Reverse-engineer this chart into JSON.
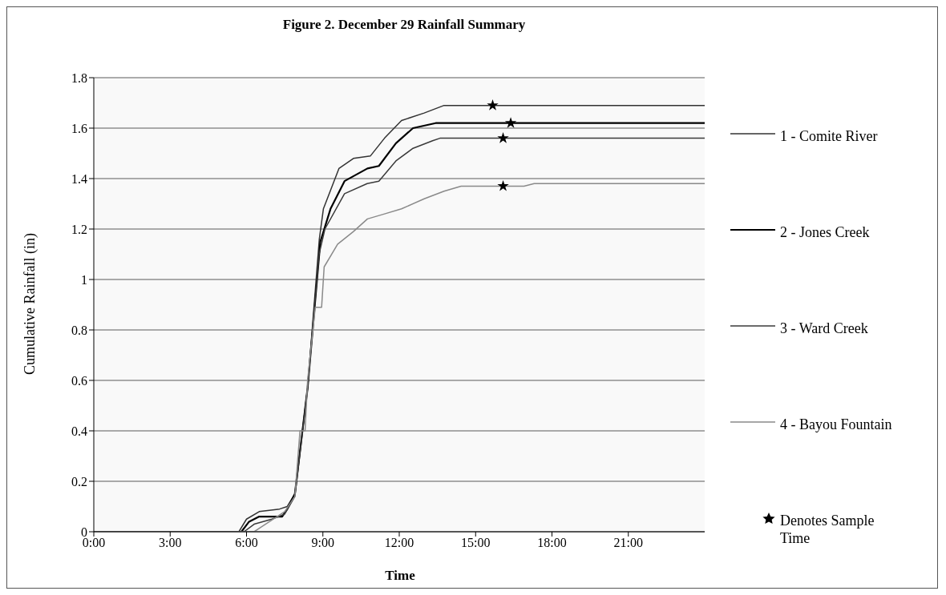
{
  "chart_data": {
    "type": "line",
    "title": "Figure 2. December 29 Rainfall Summary",
    "xlabel": "Time",
    "ylabel": "Cumulative Rainfall (in)",
    "xlim": [
      0,
      24
    ],
    "ylim": [
      0,
      1.8
    ],
    "xticks": [
      {
        "value": 0,
        "label": "0:00"
      },
      {
        "value": 3,
        "label": "3:00"
      },
      {
        "value": 6,
        "label": "6:00"
      },
      {
        "value": 9,
        "label": "9:00"
      },
      {
        "value": 12,
        "label": "12:00"
      },
      {
        "value": 15,
        "label": "15:00"
      },
      {
        "value": 18,
        "label": "18:00"
      },
      {
        "value": 21,
        "label": "21:00"
      }
    ],
    "yticks": [
      0,
      0.2,
      0.4,
      0.6,
      0.8,
      1,
      1.2,
      1.4,
      1.6,
      1.8
    ],
    "grid": "y",
    "legend": "right",
    "marker": "none",
    "line_style": "solid",
    "series": [
      {
        "name": "1 - Comite River",
        "color": "#333333",
        "x": [
          0,
          5.7,
          6.0,
          6.5,
          7.3,
          7.6,
          7.9,
          8.4,
          8.86,
          9.02,
          9.63,
          10.2,
          10.87,
          11.42,
          12.09,
          12.98,
          13.76,
          24
        ],
        "values": [
          0,
          0,
          0.05,
          0.08,
          0.09,
          0.1,
          0.15,
          0.57,
          1.16,
          1.28,
          1.44,
          1.48,
          1.49,
          1.56,
          1.63,
          1.66,
          1.69,
          1.69
        ]
      },
      {
        "name": "2 - Jones Creek",
        "color": "#000000",
        "x": [
          0,
          5.8,
          6.1,
          6.5,
          7.4,
          7.6,
          7.9,
          8.4,
          8.9,
          9.3,
          9.85,
          10.75,
          11.2,
          11.87,
          12.54,
          13.43,
          24
        ],
        "values": [
          0,
          0,
          0.04,
          0.06,
          0.06,
          0.09,
          0.15,
          0.57,
          1.15,
          1.28,
          1.39,
          1.44,
          1.45,
          1.54,
          1.6,
          1.62,
          1.62
        ]
      },
      {
        "name": "3 - Ward Creek",
        "color": "#3a3a3a",
        "x": [
          0,
          5.9,
          6.3,
          7.0,
          7.5,
          7.9,
          8.4,
          8.85,
          9.08,
          9.85,
          10.74,
          11.2,
          11.87,
          12.54,
          13.31,
          13.6,
          24
        ],
        "values": [
          0,
          0,
          0.03,
          0.05,
          0.07,
          0.14,
          0.57,
          1.1,
          1.2,
          1.34,
          1.38,
          1.39,
          1.47,
          1.52,
          1.55,
          1.56,
          1.56
        ]
      },
      {
        "name": "4 - Bayou Fountain",
        "color": "#8a8a8a",
        "x": [
          0,
          6.3,
          6.6,
          7.5,
          7.9,
          8.1,
          8.3,
          8.4,
          8.7,
          8.95,
          9.05,
          9.58,
          10.2,
          10.75,
          11.42,
          12.09,
          12.98,
          13.76,
          14.43,
          16.9,
          17.3,
          24
        ],
        "values": [
          0,
          0,
          0.02,
          0.08,
          0.14,
          0.4,
          0.4,
          0.6,
          0.89,
          0.89,
          1.05,
          1.14,
          1.19,
          1.24,
          1.26,
          1.28,
          1.32,
          1.35,
          1.37,
          1.37,
          1.38,
          1.38
        ]
      },
      {
        "name": "Denotes Sample Time",
        "type": "scatter",
        "marker": "star",
        "color": "#000000",
        "x": [
          15.67,
          16.38,
          16.08,
          16.08
        ],
        "values": [
          1.69,
          1.62,
          1.56,
          1.37
        ]
      }
    ]
  }
}
